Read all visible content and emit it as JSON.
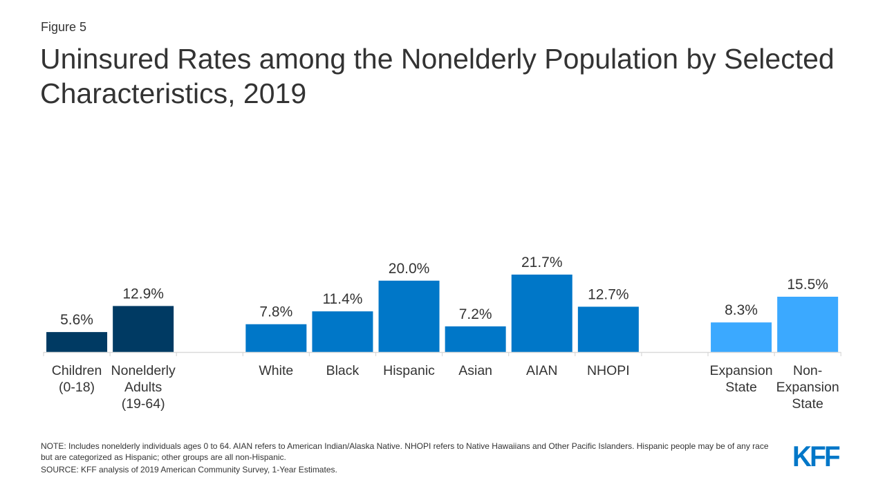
{
  "figure_label": "Figure 5",
  "title": "Uninsured Rates among the Nonelderly Population by Selected Characteristics, 2019",
  "note": "NOTE: Includes nonelderly individuals ages 0 to 64. AIAN refers to American Indian/Alaska Native. NHOPI refers to Native Hawaiians and Other Pacific Islanders. Hispanic people may be of any race but are categorized as Hispanic; other groups are all non-Hispanic.",
  "source": "SOURCE: KFF analysis of 2019 American Community Survey, 1-Year Estimates.",
  "logo": "KFF",
  "chart_data": {
    "type": "bar",
    "title": "Uninsured Rates among the Nonelderly Population by Selected Characteristics, 2019",
    "xlabel": "",
    "ylabel": "",
    "ylim": [
      0,
      25
    ],
    "grid": false,
    "unit": "%",
    "categories": [
      [
        "Children",
        "(0-18)"
      ],
      [
        "Nonelderly",
        "Adults",
        "(19-64)"
      ],
      [],
      [
        "White"
      ],
      [
        "Black"
      ],
      [
        "Hispanic"
      ],
      [
        "Asian"
      ],
      [
        "AIAN"
      ],
      [
        "NHOPI"
      ],
      [],
      [
        "Expansion",
        "State"
      ],
      [
        "Non-",
        "Expansion",
        "State"
      ]
    ],
    "values": [
      5.6,
      12.9,
      null,
      7.8,
      11.4,
      20.0,
      7.2,
      21.7,
      12.7,
      null,
      8.3,
      15.5
    ],
    "labels": [
      "5.6%",
      "12.9%",
      "",
      "7.8%",
      "11.4%",
      "20.0%",
      "7.2%",
      "21.7%",
      "12.7%",
      "",
      "8.3%",
      "15.5%"
    ],
    "groups": [
      "age",
      "age",
      "gap",
      "race",
      "race",
      "race",
      "race",
      "race",
      "race",
      "gap",
      "medicaid",
      "medicaid"
    ],
    "colors": {
      "age": "#003a63",
      "race": "#0077c8",
      "medicaid": "#3ba9ff",
      "axis": "#d9d9d9",
      "label": "#333333"
    }
  }
}
